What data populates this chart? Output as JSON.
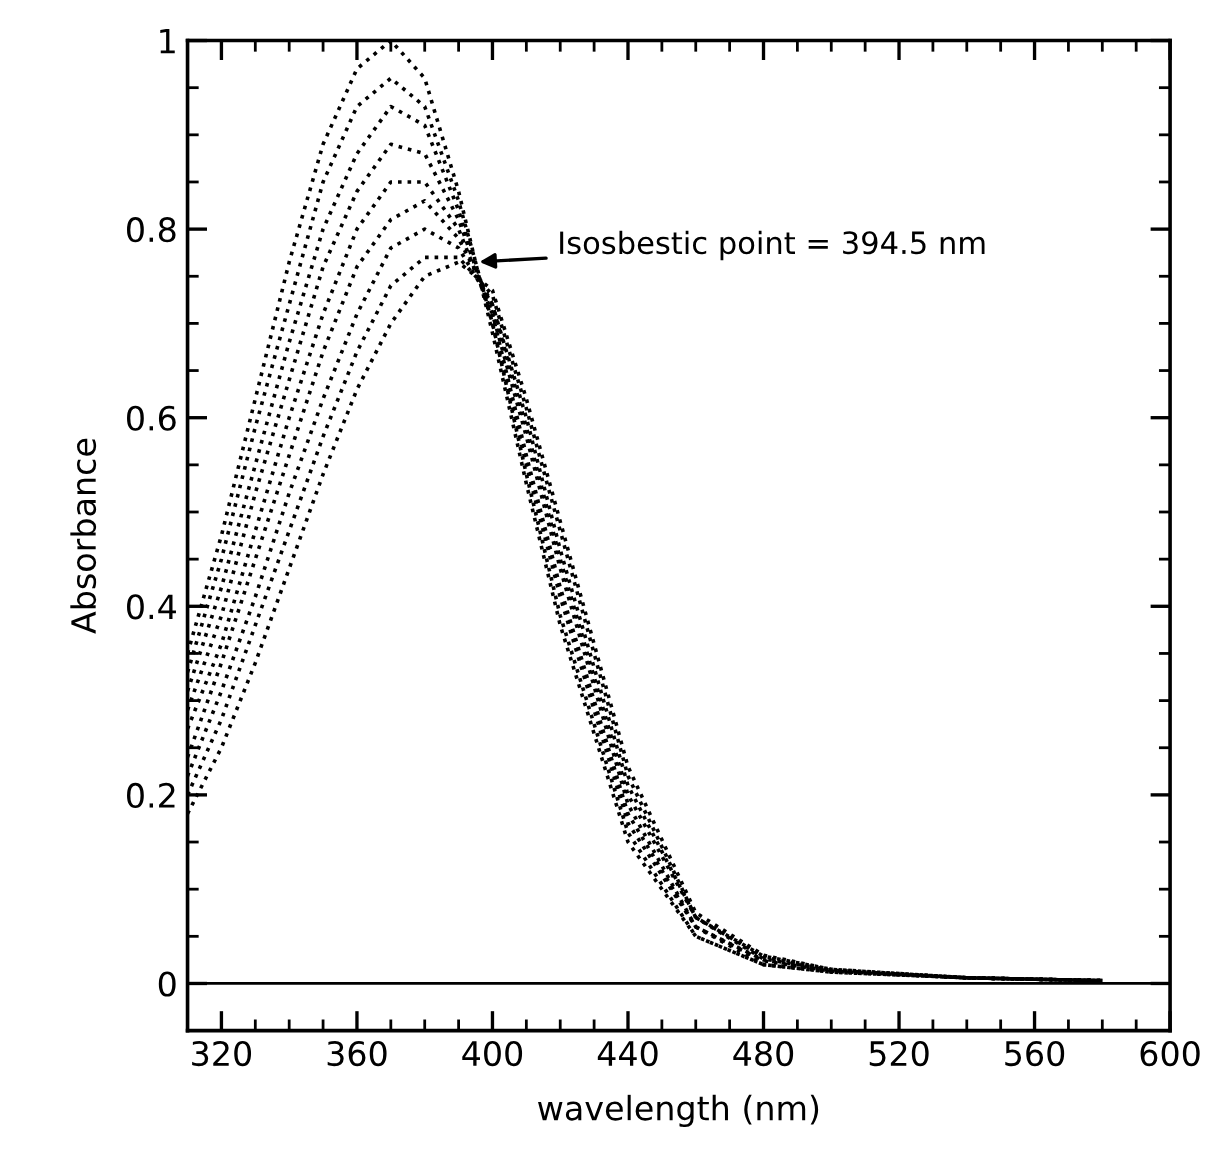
{
  "chart_data": {
    "type": "line",
    "xlabel": "wavelength (nm)",
    "ylabel": "Absorbance",
    "x": [
      310,
      320,
      330,
      340,
      350,
      360,
      370,
      380,
      390,
      400,
      410,
      420,
      440,
      460,
      480,
      500,
      540,
      580
    ],
    "series": [
      {
        "color": "#000000",
        "values": [
          0.35,
          0.475,
          0.62,
          0.765,
          0.89,
          0.97,
          1.0,
          0.96,
          0.84,
          0.69,
          0.53,
          0.38,
          0.15,
          0.05,
          0.02,
          0.012,
          0.006,
          0.003
        ]
      },
      {
        "color": "#000000",
        "values": [
          0.33,
          0.45,
          0.59,
          0.72,
          0.85,
          0.93,
          0.96,
          0.93,
          0.83,
          0.7,
          0.54,
          0.39,
          0.16,
          0.05,
          0.02,
          0.012,
          0.006,
          0.003
        ]
      },
      {
        "color": "#000000",
        "values": [
          0.31,
          0.42,
          0.55,
          0.68,
          0.8,
          0.88,
          0.93,
          0.91,
          0.82,
          0.7,
          0.55,
          0.41,
          0.17,
          0.06,
          0.02,
          0.013,
          0.006,
          0.003
        ]
      },
      {
        "color": "#000000",
        "values": [
          0.29,
          0.39,
          0.52,
          0.64,
          0.76,
          0.84,
          0.89,
          0.88,
          0.81,
          0.71,
          0.56,
          0.42,
          0.18,
          0.06,
          0.024,
          0.013,
          0.006,
          0.003
        ]
      },
      {
        "color": "#000000",
        "values": [
          0.27,
          0.36,
          0.48,
          0.6,
          0.71,
          0.8,
          0.85,
          0.85,
          0.8,
          0.71,
          0.58,
          0.44,
          0.19,
          0.06,
          0.025,
          0.014,
          0.006,
          0.003
        ]
      },
      {
        "color": "#000000",
        "values": [
          0.24,
          0.34,
          0.45,
          0.56,
          0.67,
          0.76,
          0.81,
          0.83,
          0.79,
          0.72,
          0.59,
          0.45,
          0.2,
          0.07,
          0.026,
          0.014,
          0.006,
          0.003
        ]
      },
      {
        "color": "#000000",
        "values": [
          0.22,
          0.31,
          0.41,
          0.52,
          0.62,
          0.71,
          0.78,
          0.8,
          0.78,
          0.72,
          0.6,
          0.46,
          0.21,
          0.07,
          0.028,
          0.014,
          0.006,
          0.003
        ]
      },
      {
        "color": "#000000",
        "values": [
          0.2,
          0.28,
          0.38,
          0.48,
          0.58,
          0.67,
          0.74,
          0.77,
          0.77,
          0.73,
          0.61,
          0.48,
          0.22,
          0.07,
          0.029,
          0.015,
          0.006,
          0.003
        ]
      },
      {
        "color": "#000000",
        "values": [
          0.18,
          0.25,
          0.34,
          0.44,
          0.54,
          0.63,
          0.7,
          0.75,
          0.765,
          0.735,
          0.62,
          0.49,
          0.23,
          0.075,
          0.03,
          0.015,
          0.006,
          0.003
        ]
      }
    ],
    "xlim": [
      310,
      600
    ],
    "xticks": [
      320,
      {
        "value": 330,
        "label": null
      },
      {
        "value": 340,
        "label": null
      },
      {
        "value": 350,
        "label": null
      },
      360,
      {
        "value": 370,
        "label": null
      },
      {
        "value": 380,
        "label": null
      },
      {
        "value": 390,
        "label": null
      },
      400,
      {
        "value": 410,
        "label": null
      },
      {
        "value": 420,
        "label": null
      },
      {
        "value": 430,
        "label": null
      },
      440,
      {
        "value": 450,
        "label": null
      },
      {
        "value": 460,
        "label": null
      },
      {
        "value": 470,
        "label": null
      },
      480,
      {
        "value": 490,
        "label": null
      },
      {
        "value": 500,
        "label": null
      },
      {
        "value": 510,
        "label": null
      },
      520,
      {
        "value": 530,
        "label": null
      },
      {
        "value": 540,
        "label": null
      },
      {
        "value": 550,
        "label": null
      },
      560,
      {
        "value": 570,
        "label": null
      },
      {
        "value": 580,
        "label": null
      },
      {
        "value": 590,
        "label": null
      },
      600
    ],
    "ylim": [
      -0.05,
      1.0
    ],
    "yticks": [
      0,
      {
        "value": 0.05,
        "label": null
      },
      {
        "value": 0.1,
        "label": null
      },
      {
        "value": 0.15,
        "label": null
      },
      0.2,
      {
        "value": 0.25,
        "label": null
      },
      {
        "value": 0.3,
        "label": null
      },
      {
        "value": 0.35,
        "label": null
      },
      0.4,
      {
        "value": 0.45,
        "label": null
      },
      {
        "value": 0.5,
        "label": null
      },
      {
        "value": 0.55,
        "label": null
      },
      0.6,
      {
        "value": 0.65,
        "label": null
      },
      {
        "value": 0.7,
        "label": null
      },
      {
        "value": 0.75,
        "label": null
      },
      0.8,
      {
        "value": 0.85,
        "label": null
      },
      {
        "value": 0.9,
        "label": null
      },
      {
        "value": 0.95,
        "label": null
      },
      1
    ],
    "ref_lines": [
      {
        "axis": "y",
        "value": 0,
        "color": "#000000",
        "line_style": "solid"
      }
    ],
    "annotations": [
      {
        "text": "Isosbestic point = 394.5 nm",
        "x": 394.5,
        "y": 0.765
      }
    ],
    "grid": false,
    "legend": false,
    "marker": "none",
    "line_style": "dotted"
  }
}
